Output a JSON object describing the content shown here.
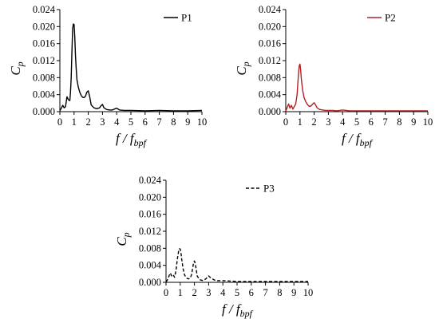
{
  "chart_data": [
    {
      "type": "line",
      "title": "",
      "xlabel": {
        "main": "f / f",
        "sub": "bpf"
      },
      "ylabel": {
        "main": "C",
        "sub": "p"
      },
      "xlim": [
        0,
        10
      ],
      "ylim": [
        0,
        0.024
      ],
      "xticks": [
        "0",
        "1",
        "2",
        "3",
        "4",
        "5",
        "6",
        "7",
        "8",
        "9",
        "10"
      ],
      "yticks": [
        "0.000",
        "0.004",
        "0.008",
        "0.012",
        "0.016",
        "0.020",
        "0.024"
      ],
      "grid": false,
      "legend_position": "top-right",
      "series": [
        {
          "name": "P1",
          "color": "#000000",
          "dash": "solid",
          "x": [
            0,
            0.1,
            0.2,
            0.3,
            0.4,
            0.5,
            0.6,
            0.7,
            0.75,
            0.8,
            0.85,
            0.9,
            0.95,
            1.0,
            1.05,
            1.1,
            1.15,
            1.2,
            1.3,
            1.4,
            1.5,
            1.6,
            1.7,
            1.8,
            1.9,
            2.0,
            2.1,
            2.2,
            2.4,
            2.6,
            2.8,
            2.9,
            3.0,
            3.1,
            3.3,
            3.5,
            3.7,
            3.9,
            4.0,
            4.2,
            4.5,
            5,
            6,
            7,
            8,
            9,
            10
          ],
          "y": [
            0.0002,
            0.0008,
            0.0015,
            0.0009,
            0.0012,
            0.0035,
            0.0028,
            0.0026,
            0.0045,
            0.008,
            0.014,
            0.0195,
            0.0206,
            0.0205,
            0.0175,
            0.013,
            0.01,
            0.0075,
            0.0058,
            0.0046,
            0.0038,
            0.0034,
            0.0033,
            0.0036,
            0.0046,
            0.0049,
            0.0035,
            0.0016,
            0.0009,
            0.0007,
            0.0009,
            0.0014,
            0.0017,
            0.0009,
            0.0005,
            0.0004,
            0.0004,
            0.0007,
            0.0008,
            0.0004,
            0.0003,
            0.0003,
            0.0002,
            0.0003,
            0.0002,
            0.0002,
            0.0003
          ]
        }
      ]
    },
    {
      "type": "line",
      "title": "",
      "xlabel": {
        "main": "f / f",
        "sub": "bpf"
      },
      "ylabel": {
        "main": "C",
        "sub": "p"
      },
      "xlim": [
        0,
        10
      ],
      "ylim": [
        0,
        0.024
      ],
      "xticks": [
        "0",
        "1",
        "2",
        "3",
        "4",
        "5",
        "6",
        "7",
        "8",
        "9",
        "10"
      ],
      "yticks": [
        "0.000",
        "0.004",
        "0.008",
        "0.012",
        "0.016",
        "0.020",
        "0.024"
      ],
      "grid": false,
      "legend_position": "top-right",
      "series": [
        {
          "name": "P2",
          "color": "#b22222",
          "dash": "solid",
          "x": [
            0,
            0.1,
            0.2,
            0.3,
            0.4,
            0.5,
            0.6,
            0.7,
            0.8,
            0.85,
            0.9,
            0.95,
            1.0,
            1.05,
            1.1,
            1.2,
            1.3,
            1.4,
            1.5,
            1.6,
            1.7,
            1.8,
            1.9,
            2.0,
            2.1,
            2.2,
            2.4,
            2.6,
            2.8,
            3.0,
            3.3,
            3.6,
            4.0,
            4.5,
            5,
            6,
            7,
            8,
            9,
            10
          ],
          "y": [
            0.0001,
            0.001,
            0.0018,
            0.0008,
            0.0015,
            0.0006,
            0.0012,
            0.0018,
            0.004,
            0.0065,
            0.009,
            0.0108,
            0.0112,
            0.0098,
            0.0075,
            0.0048,
            0.0032,
            0.0024,
            0.0018,
            0.0014,
            0.0012,
            0.0014,
            0.0018,
            0.0021,
            0.0016,
            0.0009,
            0.0005,
            0.0004,
            0.0003,
            0.0003,
            0.0003,
            0.0002,
            0.0004,
            0.0002,
            0.0002,
            0.0002,
            0.0002,
            0.0002,
            0.0002,
            0.0002
          ]
        }
      ]
    },
    {
      "type": "line",
      "title": "",
      "xlabel": {
        "main": "f / f",
        "sub": "bpf"
      },
      "ylabel": {
        "main": "C",
        "sub": "p"
      },
      "xlim": [
        0,
        10
      ],
      "ylim": [
        0,
        0.024
      ],
      "xticks": [
        "0",
        "1",
        "2",
        "3",
        "4",
        "5",
        "6",
        "7",
        "8",
        "9",
        "10"
      ],
      "yticks": [
        "0.000",
        "0.004",
        "0.008",
        "0.012",
        "0.016",
        "0.020",
        "0.024"
      ],
      "grid": false,
      "legend_position": "top-right",
      "series": [
        {
          "name": "P3",
          "color": "#000000",
          "dash": "dashed",
          "x": [
            0,
            0.1,
            0.2,
            0.3,
            0.4,
            0.5,
            0.6,
            0.7,
            0.8,
            0.9,
            0.95,
            1.0,
            1.05,
            1.1,
            1.2,
            1.3,
            1.4,
            1.5,
            1.6,
            1.7,
            1.8,
            1.9,
            1.95,
            2.0,
            2.05,
            2.1,
            2.2,
            2.4,
            2.6,
            2.8,
            3.0,
            3.2,
            3.5,
            4.0,
            4.5,
            5,
            6,
            7,
            8,
            9,
            10
          ],
          "y": [
            0.0001,
            0.0006,
            0.0014,
            0.0022,
            0.0015,
            0.0018,
            0.0012,
            0.0028,
            0.0055,
            0.0076,
            0.0079,
            0.0078,
            0.007,
            0.0055,
            0.0032,
            0.0018,
            0.0012,
            0.0009,
            0.0008,
            0.001,
            0.0018,
            0.0038,
            0.0048,
            0.005,
            0.0045,
            0.0035,
            0.0014,
            0.0006,
            0.0004,
            0.0008,
            0.0015,
            0.0009,
            0.0004,
            0.0004,
            0.0003,
            0.0002,
            0.0002,
            0.0002,
            0.0002,
            0.0002,
            0.0002
          ]
        }
      ]
    }
  ]
}
